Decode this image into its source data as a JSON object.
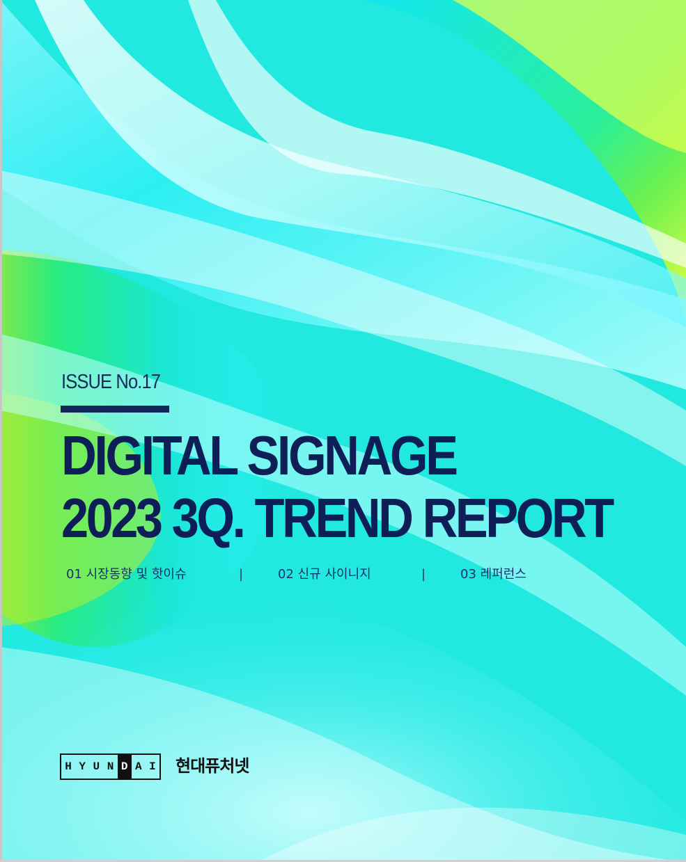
{
  "cover": {
    "issue": "ISSUE No.17",
    "title_line_1": "DIGITAL SIGNAGE",
    "title_line_2": "2023 3Q. TREND REPORT",
    "toc": {
      "item_1": "01 시장동향 및 핫이슈",
      "separator": "|",
      "item_2": "02 신규 사이니지",
      "item_3": "03 레퍼런스"
    },
    "brand": {
      "logo_letters": [
        "H",
        "Y",
        "U",
        "N",
        "D",
        "A",
        "I"
      ],
      "korean_name": "현대퓨처넷"
    }
  },
  "colors": {
    "title": "#0d1f56",
    "rule": "#13265c",
    "logo": "#111111",
    "cyan": "#19e7d9",
    "green": "#2ee889",
    "lime": "#d8ff3f",
    "light_cyan": "#aefdfd"
  }
}
